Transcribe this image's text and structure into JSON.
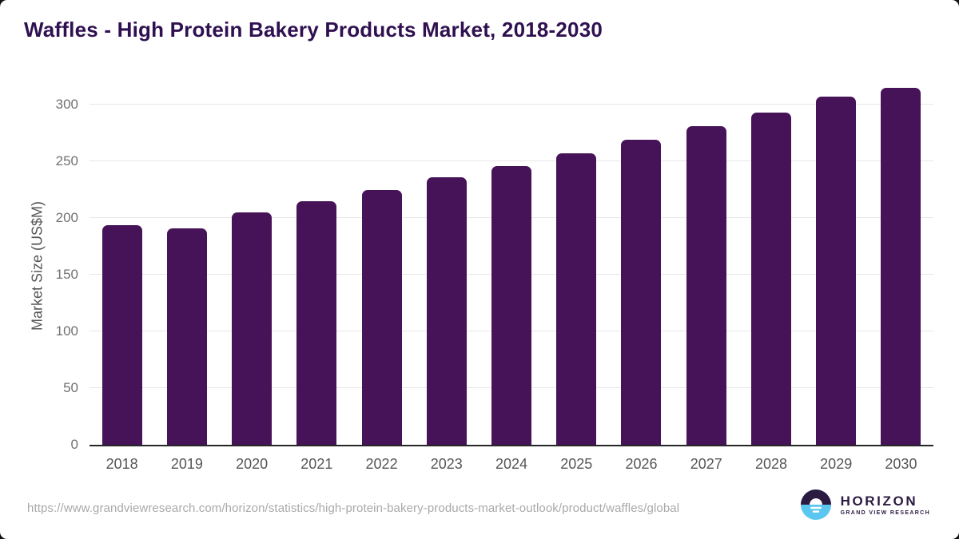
{
  "header": {
    "title": "Waffles - High Protein Bakery Products Market, 2018-2030",
    "title_color": "#2f1050"
  },
  "chart_data": {
    "type": "bar",
    "title": "Waffles - High Protein Bakery Products Market, 2018-2030",
    "categories": [
      "2018",
      "2019",
      "2020",
      "2021",
      "2022",
      "2023",
      "2024",
      "2025",
      "2026",
      "2027",
      "2028",
      "2029",
      "2030"
    ],
    "values": [
      194,
      191,
      205,
      215,
      225,
      236,
      246,
      257,
      269,
      281,
      293,
      307,
      315
    ],
    "xlabel": "",
    "ylabel": "Market Size (US$M)",
    "yticks": [
      0,
      50,
      100,
      150,
      200,
      250,
      300
    ],
    "ylim": [
      0,
      322
    ],
    "bar_color": "#461358",
    "grid": "horizontal-light-gray",
    "legend": "none"
  },
  "footer": {
    "source_url": "https://www.grandviewresearch.com/horizon/statistics/high-protein-bakery-products-market-outlook/product/waffles/global",
    "logo": {
      "title": "HORIZON",
      "subtitle": "GRAND VIEW RESEARCH",
      "purple": "#2b1b42",
      "blue": "#5bc6f0"
    }
  }
}
